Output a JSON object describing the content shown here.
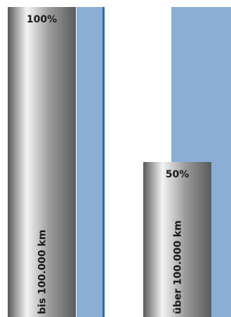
{
  "chart_data": {
    "type": "bar",
    "categories": [
      "bis 100.000 km",
      "über 100.000 km"
    ],
    "values": [
      100,
      50
    ],
    "value_labels": [
      "100%",
      "50%"
    ],
    "ylim": [
      0,
      100
    ],
    "grid": false,
    "legend": "none",
    "colors": {
      "cylinder_dark": "#5a5a5a",
      "cylinder_mid": "#9a9a9a",
      "cylinder_light": "#f4f4f4",
      "backdrop": "#8aaed4",
      "backdrop_edge": "#2e6db4"
    }
  }
}
